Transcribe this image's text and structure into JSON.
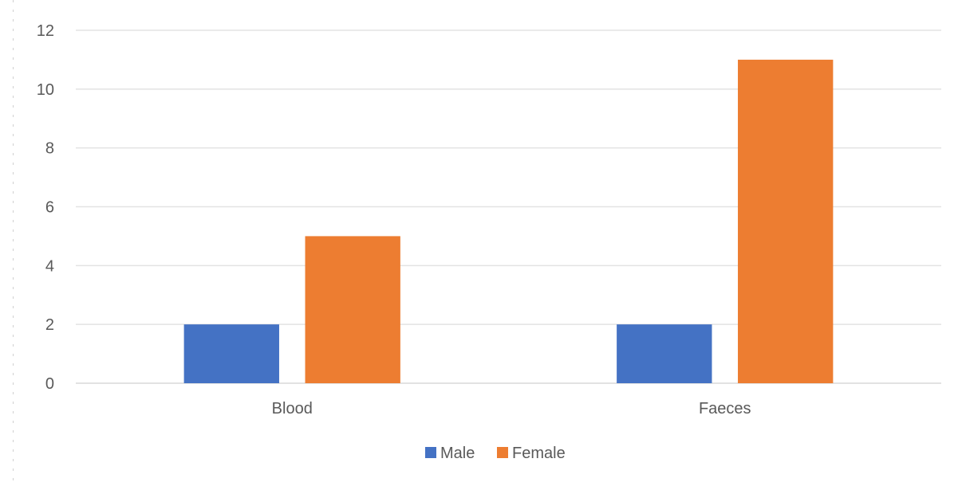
{
  "chart_data": {
    "type": "bar",
    "title": "",
    "xlabel": "",
    "ylabel": "",
    "categories": [
      "Blood",
      "Faeces"
    ],
    "series": [
      {
        "name": "Male",
        "values": [
          2,
          2
        ],
        "color": "#4472C4"
      },
      {
        "name": "Female",
        "values": [
          5,
          11
        ],
        "color": "#ED7D31"
      }
    ],
    "ylim": [
      0,
      12
    ],
    "yticks": [
      "0",
      "2",
      "4",
      "6",
      "8",
      "10",
      "12"
    ],
    "grid": true,
    "legend_position": "bottom"
  }
}
